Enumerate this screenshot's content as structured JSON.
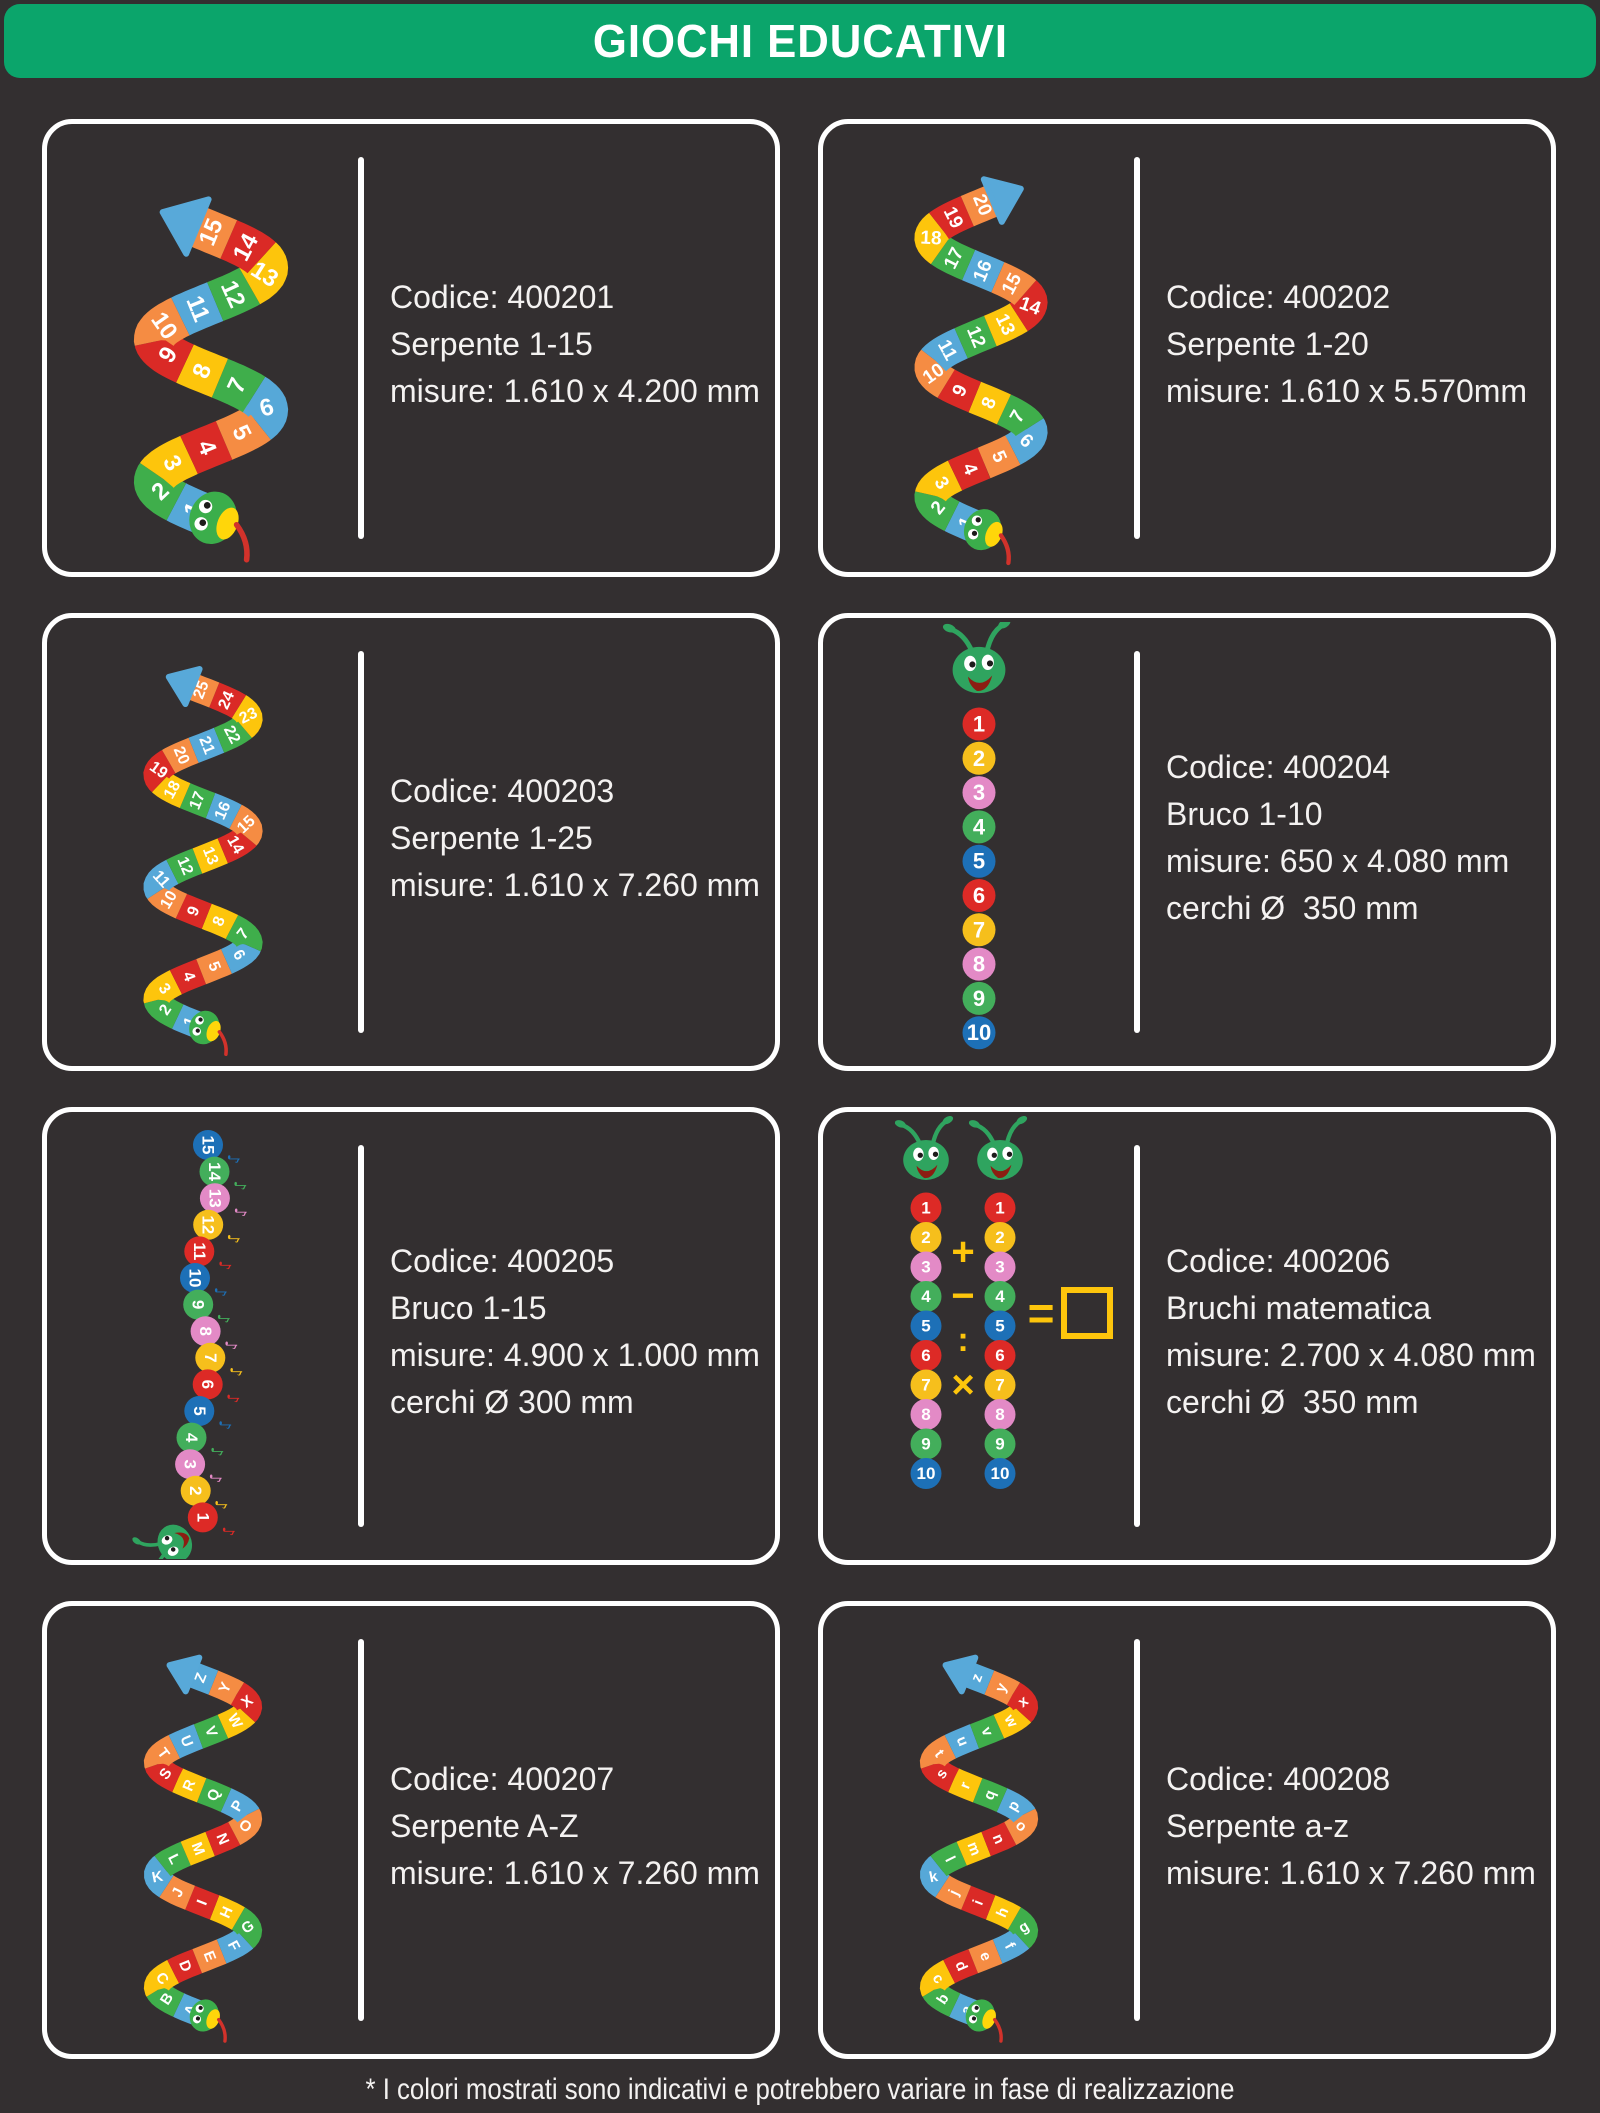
{
  "header": {
    "title": "GIOCHI EDUCATIVI"
  },
  "footer": {
    "note": "* I colori mostrati sono indicativi e potrebbero variare in fase di realizzazione"
  },
  "palette": {
    "background": "#332f30",
    "banner_green": "#0ba56b",
    "card_border": "#ffffff",
    "text": "#f4f2f1",
    "snake_segment_colors": [
      "#56a8d8",
      "#3fae4b",
      "#fdc50c",
      "#da2a26",
      "#f58c43"
    ],
    "snake_head_green": "#3bae4b",
    "snake_jaw_yellow": "#ffd60a",
    "snake_tongue_red": "#d2322b",
    "tail_blue": "#58a9d9",
    "bruco_circle_colors": [
      "#dd2a26",
      "#f6bf1c",
      "#e38ac6",
      "#43ae5b",
      "#1d70b7"
    ],
    "bruco_head_green": "#2fa45f",
    "math_yellow": "#fdc50c"
  },
  "cards": [
    {
      "lines": [
        "Codice: 400201",
        "Serpente 1-15",
        "misure: 1.610 x 4.200 mm"
      ],
      "illustration": {
        "type": "snake",
        "name": "serpente-1-15",
        "labels": [
          "1",
          "2",
          "3",
          "4",
          "5",
          "6",
          "7",
          "8",
          "9",
          "10",
          "11",
          "12",
          "13",
          "14",
          "15"
        ]
      }
    },
    {
      "lines": [
        "Codice: 400202",
        "Serpente 1-20",
        "misure: 1.610 x 5.570mm"
      ],
      "illustration": {
        "type": "snake",
        "name": "serpente-1-20",
        "labels": [
          "1",
          "2",
          "3",
          "4",
          "5",
          "6",
          "7",
          "8",
          "9",
          "10",
          "11",
          "12",
          "13",
          "14",
          "15",
          "16",
          "17",
          "18",
          "19",
          "20"
        ]
      }
    },
    {
      "lines": [
        "Codice: 400203",
        "Serpente 1-25",
        "misure: 1.610 x 7.260 mm"
      ],
      "illustration": {
        "type": "snake",
        "name": "serpente-1-25",
        "labels": [
          "1",
          "2",
          "3",
          "4",
          "5",
          "6",
          "7",
          "8",
          "9",
          "10",
          "11",
          "12",
          "13",
          "14",
          "15",
          "16",
          "17",
          "18",
          "19",
          "20",
          "21",
          "22",
          "23",
          "24",
          "25"
        ]
      }
    },
    {
      "lines": [
        "Codice: 400204",
        "Bruco 1-10",
        "misure: 650 x 4.080 mm",
        "cerchi Ø  350 mm"
      ],
      "illustration": {
        "type": "bruco",
        "name": "bruco-1-10",
        "labels": [
          "1",
          "2",
          "3",
          "4",
          "5",
          "6",
          "7",
          "8",
          "9",
          "10"
        ]
      }
    },
    {
      "lines": [
        "Codice: 400205",
        "Bruco 1-15",
        "misure: 4.900 x 1.000 mm",
        "cerchi Ø 300 mm"
      ],
      "illustration": {
        "type": "bruco-notes",
        "name": "bruco-1-15-note-musicali",
        "labels": [
          "1",
          "2",
          "3",
          "4",
          "5",
          "6",
          "7",
          "8",
          "9",
          "10",
          "11",
          "12",
          "13",
          "14",
          "15"
        ],
        "note_glyph": "♪"
      }
    },
    {
      "lines": [
        "Codice: 400206",
        "Bruchi matematica",
        "misure: 2.700 x 4.080 mm",
        "cerchi Ø  350 mm"
      ],
      "illustration": {
        "type": "bruchi-matematica",
        "name": "bruchi-matematica",
        "left_labels": [
          "1",
          "2",
          "3",
          "4",
          "5",
          "6",
          "7",
          "8",
          "9",
          "10"
        ],
        "right_labels": [
          "1",
          "2",
          "3",
          "4",
          "5",
          "6",
          "7",
          "8",
          "9",
          "10"
        ],
        "symbols": [
          "+",
          "−",
          ":",
          "×"
        ],
        "equals": "=",
        "result_box": "square"
      }
    },
    {
      "lines": [
        "Codice: 400207",
        "Serpente A-Z",
        "misure: 1.610 x 7.260 mm"
      ],
      "illustration": {
        "type": "snake",
        "name": "serpente-A-Z",
        "labels": [
          "A",
          "B",
          "C",
          "D",
          "E",
          "F",
          "G",
          "H",
          "I",
          "J",
          "K",
          "L",
          "M",
          "N",
          "O",
          "P",
          "Q",
          "R",
          "S",
          "T",
          "U",
          "V",
          "W",
          "X",
          "Y",
          "Z"
        ]
      }
    },
    {
      "lines": [
        "Codice: 400208",
        "Serpente a-z",
        "misure: 1.610 x 7.260 mm"
      ],
      "illustration": {
        "type": "snake",
        "name": "serpente-a-z",
        "labels": [
          "a",
          "b",
          "c",
          "d",
          "e",
          "f",
          "g",
          "h",
          "i",
          "j",
          "k",
          "l",
          "m",
          "n",
          "o",
          "p",
          "q",
          "r",
          "s",
          "t",
          "u",
          "v",
          "w",
          "x",
          "y",
          "z"
        ]
      }
    }
  ]
}
